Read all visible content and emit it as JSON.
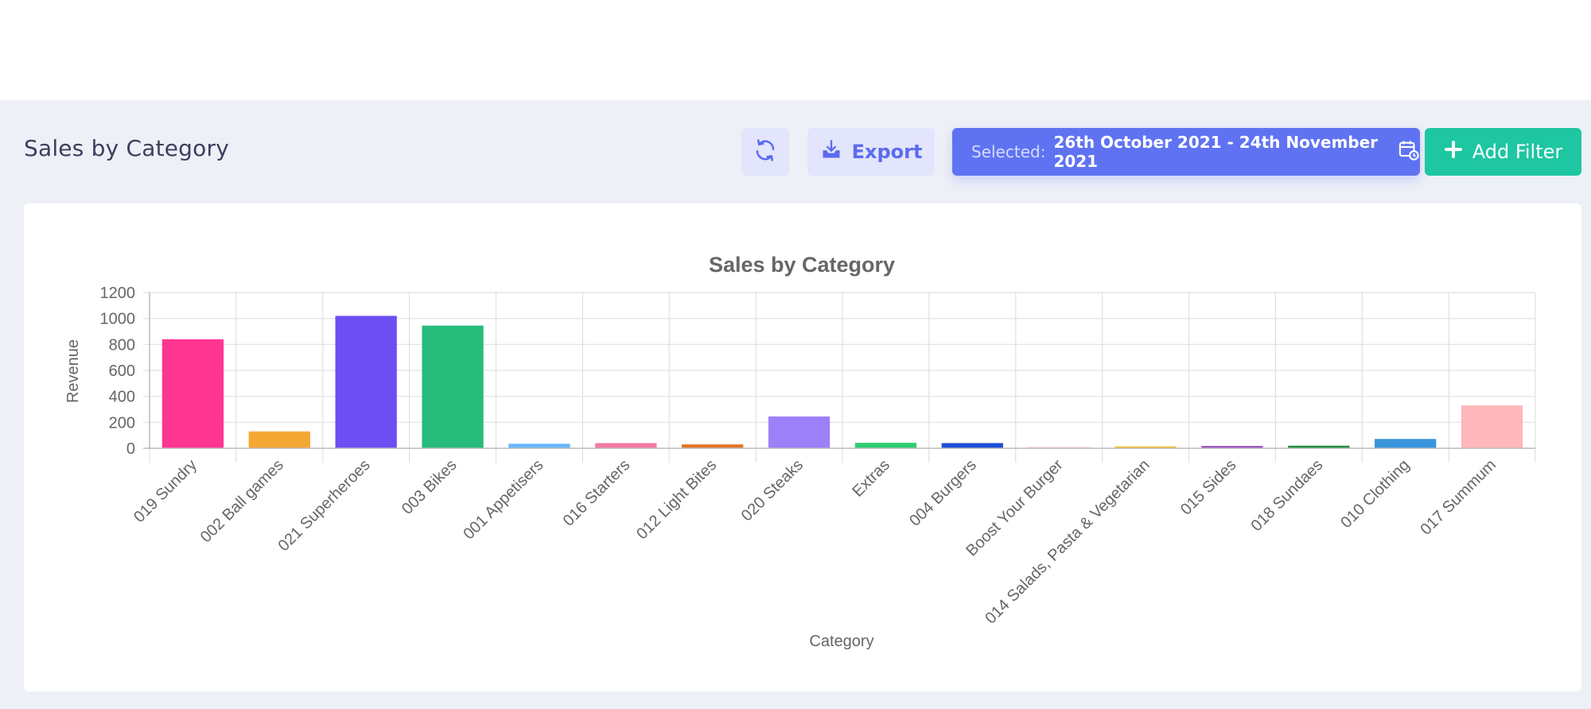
{
  "page": {
    "title": "Sales by Category"
  },
  "toolbar": {
    "refresh_icon": "refresh-icon",
    "export_label": "Export",
    "export_icon": "download-icon",
    "selected_label": "Selected:",
    "selected_range": "26th October 2021 - 24th November 2021",
    "calendar_icon": "calendar-clock-icon",
    "add_filter_label": "Add Filter",
    "add_icon": "plus-icon",
    "accent": "#5f73f2",
    "add_filter_color": "#1ec6a2"
  },
  "chart_data": {
    "type": "bar",
    "title": "Sales by Category",
    "xlabel": "Category",
    "ylabel": "Revenue",
    "ylim": [
      0,
      1200
    ],
    "yticks": [
      0,
      200,
      400,
      600,
      800,
      1000,
      1200
    ],
    "grid": true,
    "legend": "none",
    "categories": [
      "019 Sundry",
      "002 Ball games",
      "021 Superheroes",
      "003 Bikes",
      "001 Appetisers",
      "016 Starters",
      "012 Light Bites",
      "020 Steaks",
      "Extras",
      "004 Burgers",
      "Boost Your Burger",
      "014 Salads, Pasta & Vegetarian",
      "015 Sides",
      "018 Sundaes",
      "010 Clothing",
      "017 Summum"
    ],
    "values": [
      840,
      130,
      1020,
      945,
      35,
      40,
      30,
      245,
      42,
      40,
      8,
      15,
      18,
      20,
      72,
      330
    ],
    "colors": [
      "#ff3592",
      "#f4a833",
      "#6d4ef2",
      "#27bc7b",
      "#6cb5fa",
      "#f47aa0",
      "#e0762a",
      "#9b80fa",
      "#2ecc71",
      "#1d4fd8",
      "#f4a9c4",
      "#f2c230",
      "#9b4fc4",
      "#1e8f3a",
      "#3a95dc",
      "#ffb7bb"
    ]
  }
}
